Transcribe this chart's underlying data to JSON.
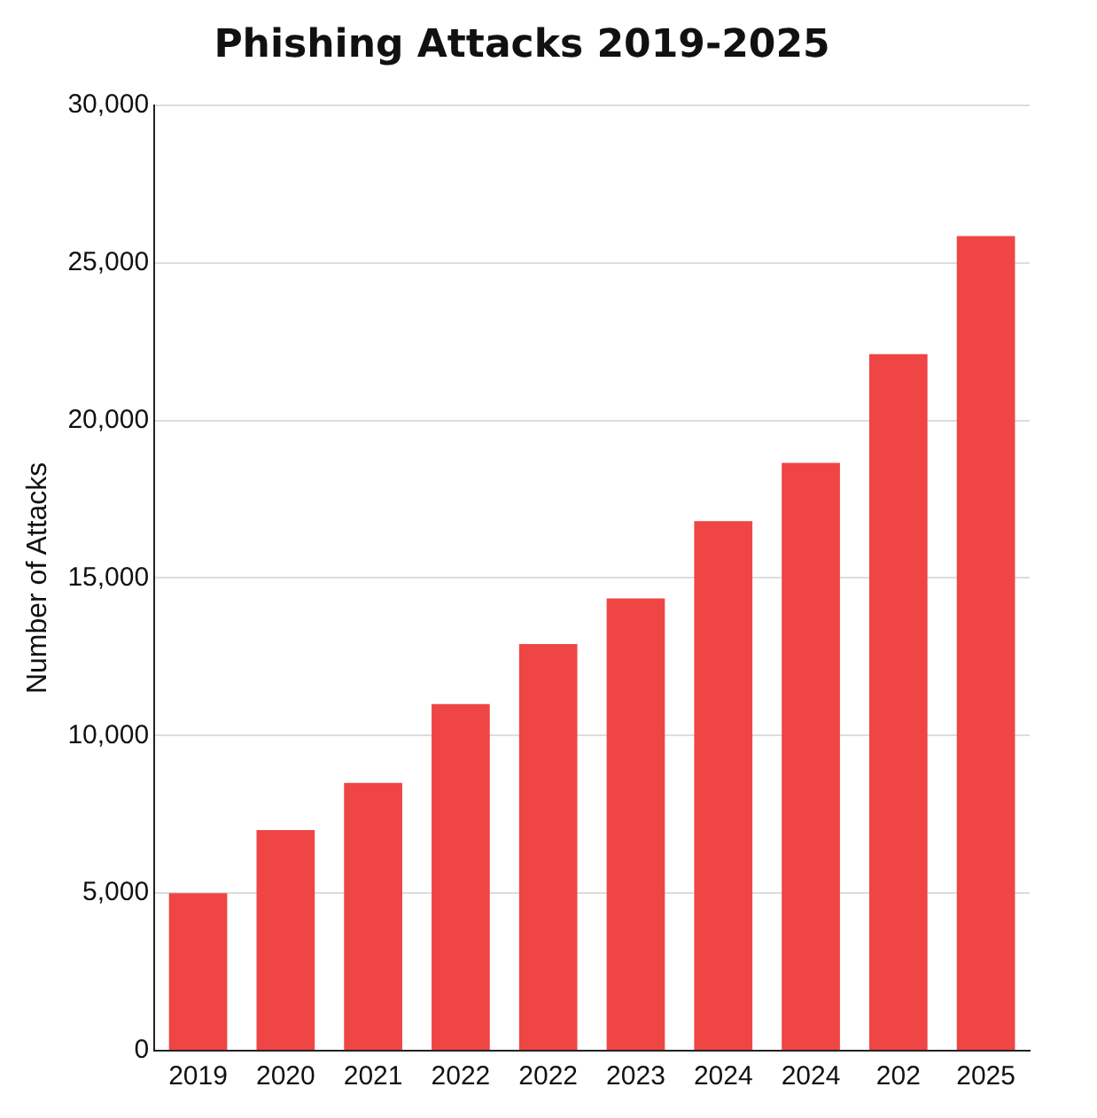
{
  "chart_data": {
    "type": "bar",
    "title": "Phishing Attacks 2019-2025",
    "ylabel": "Number of Attacks",
    "categories": [
      "2019",
      "2020",
      "2021",
      "2022",
      "2022",
      "2023",
      "2024",
      "2024",
      "202",
      "2025"
    ],
    "values": [
      5000,
      7000,
      8500,
      11000,
      12900,
      14350,
      16800,
      18650,
      22100,
      25850
    ],
    "color": "#ef4545",
    "ylim": [
      0,
      30000
    ],
    "yticks": [
      0,
      {
        "value": 5000,
        "label": "5,000"
      },
      {
        "value": 10000,
        "label": "10,000"
      },
      {
        "value": 15000,
        "label": "15,000"
      },
      {
        "value": 20000,
        "label": "20,000"
      },
      {
        "value": 25000,
        "label": "25,000"
      },
      {
        "value": 30000,
        "label": "30,000"
      }
    ],
    "grid": "y",
    "legend": false
  }
}
